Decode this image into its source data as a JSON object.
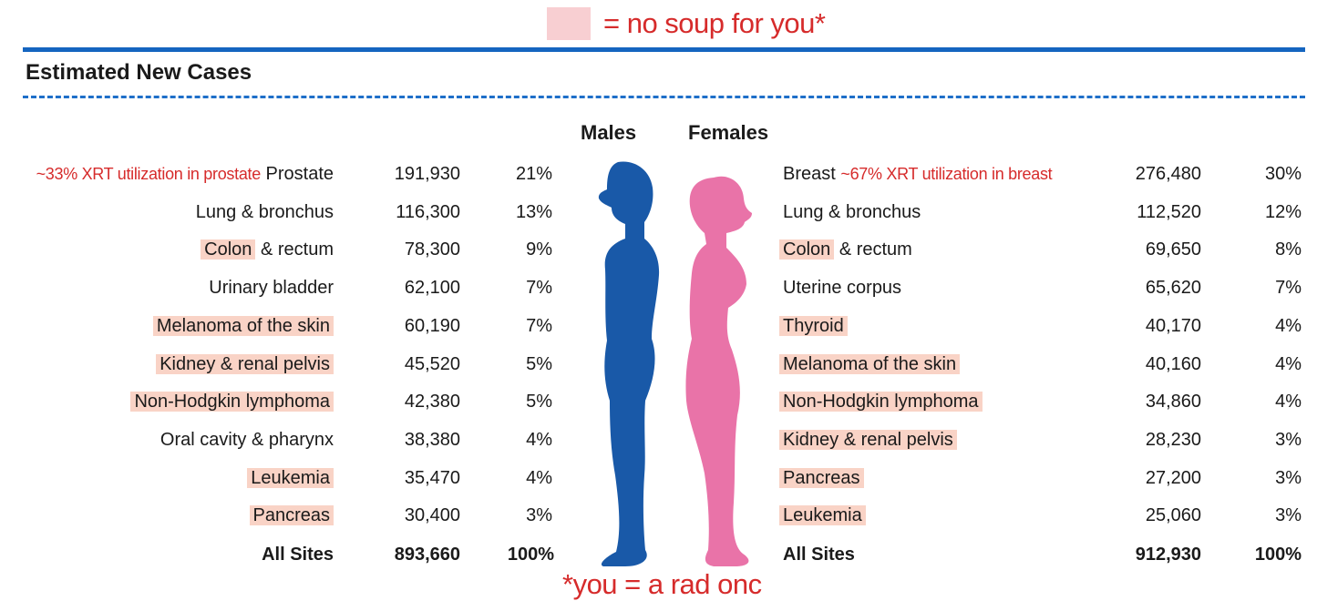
{
  "legend": {
    "swatch_color": "#f8cfd2",
    "text": "= no soup for you*"
  },
  "title": "Estimated New Cases",
  "headers": {
    "males": "Males",
    "females": "Females"
  },
  "males": {
    "rows": [
      {
        "site": "Prostate",
        "cases": "191,930",
        "pct": "21%",
        "highlight": false,
        "note": "~33% XRT utilization in prostate"
      },
      {
        "site": "Lung & bronchus",
        "cases": "116,300",
        "pct": "13%",
        "highlight": false
      },
      {
        "site": "Colon",
        "site_rest": " & rectum",
        "cases": "78,300",
        "pct": "9%",
        "highlight": true
      },
      {
        "site": "Urinary bladder",
        "cases": "62,100",
        "pct": "7%",
        "highlight": false
      },
      {
        "site": "Melanoma of the skin",
        "cases": "60,190",
        "pct": "7%",
        "highlight": true
      },
      {
        "site": "Kidney & renal pelvis",
        "cases": "45,520",
        "pct": "5%",
        "highlight": true
      },
      {
        "site": "Non-Hodgkin lymphoma",
        "cases": "42,380",
        "pct": "5%",
        "highlight": true
      },
      {
        "site": "Oral cavity & pharynx",
        "cases": "38,380",
        "pct": "4%",
        "highlight": false
      },
      {
        "site": "Leukemia",
        "cases": "35,470",
        "pct": "4%",
        "highlight": true
      },
      {
        "site": "Pancreas",
        "cases": "30,400",
        "pct": "3%",
        "highlight": true
      }
    ],
    "total": {
      "site": "All Sites",
      "cases": "893,660",
      "pct": "100%"
    }
  },
  "females": {
    "rows": [
      {
        "site": "Breast",
        "cases": "276,480",
        "pct": "30%",
        "highlight": false,
        "note": "~67% XRT utilization in breast"
      },
      {
        "site": "Lung & bronchus",
        "cases": "112,520",
        "pct": "12%",
        "highlight": false
      },
      {
        "site": "Colon",
        "site_rest": " & rectum",
        "cases": "69,650",
        "pct": "8%",
        "highlight": true
      },
      {
        "site": "Uterine corpus",
        "cases": "65,620",
        "pct": "7%",
        "highlight": false
      },
      {
        "site": "Thyroid",
        "cases": "40,170",
        "pct": "4%",
        "highlight": true
      },
      {
        "site": "Melanoma of the skin",
        "cases": "40,160",
        "pct": "4%",
        "highlight": true
      },
      {
        "site": "Non-Hodgkin lymphoma",
        "cases": "34,860",
        "pct": "4%",
        "highlight": true
      },
      {
        "site": "Kidney & renal pelvis",
        "cases": "28,230",
        "pct": "3%",
        "highlight": true
      },
      {
        "site": "Pancreas",
        "cases": "27,200",
        "pct": "3%",
        "highlight": true
      },
      {
        "site": "Leukemia",
        "cases": "25,060",
        "pct": "3%",
        "highlight": true
      }
    ],
    "total": {
      "site": "All Sites",
      "cases": "912,930",
      "pct": "100%"
    }
  },
  "footnote": "*you = a rad onc",
  "colors": {
    "accent_blue": "#1565c0",
    "male_figure": "#1959a8",
    "female_figure": "#e973a8",
    "highlight": "#f9d3c6",
    "annotation_red": "#d62b2b"
  },
  "icons": {
    "male": "male-silhouette-icon",
    "female": "female-silhouette-icon"
  }
}
